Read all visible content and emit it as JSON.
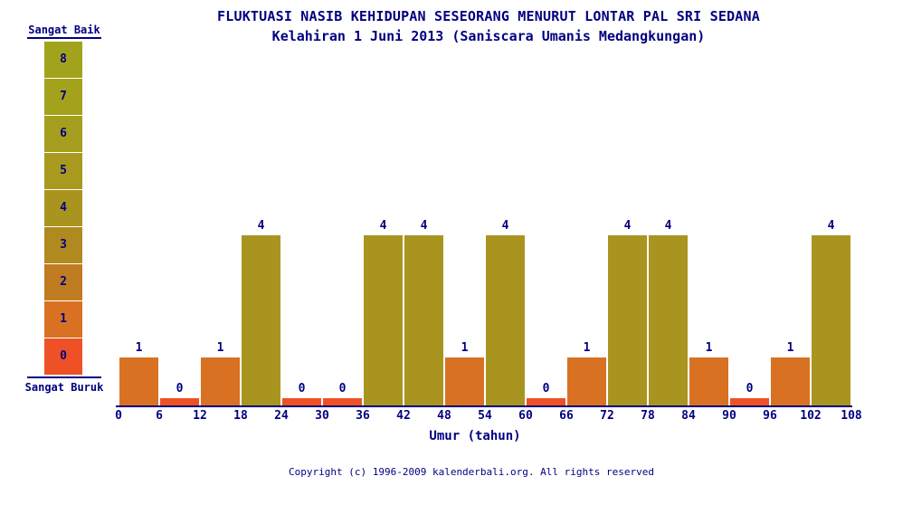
{
  "chart_data": {
    "type": "bar",
    "title": "FLUKTUASI NASIB KEHIDUPAN SESEORANG MENURUT LONTAR PAL SRI SEDANA",
    "subtitle": "Kelahiran 1 Juni 2013 (Saniscara Umanis Medangkungan)",
    "xlabel": "Umur (tahun)",
    "ylabel": "",
    "ylim": [
      0,
      8
    ],
    "x_interval_years": 6,
    "x_ticks": [
      0,
      6,
      12,
      18,
      24,
      30,
      36,
      42,
      48,
      54,
      60,
      66,
      72,
      78,
      84,
      90,
      96,
      102,
      108
    ],
    "categories": [
      "0-6",
      "6-12",
      "12-18",
      "18-24",
      "24-30",
      "30-36",
      "36-42",
      "42-48",
      "48-54",
      "54-60",
      "60-66",
      "66-72",
      "72-78",
      "78-84",
      "84-90",
      "90-96",
      "96-102",
      "102-108"
    ],
    "values": [
      1,
      0,
      1,
      4,
      0,
      0,
      4,
      4,
      1,
      4,
      0,
      1,
      4,
      4,
      1,
      0,
      1,
      4
    ],
    "grid": false,
    "legend_position": "left"
  },
  "legend": {
    "top_label": "Sangat Baik",
    "bottom_label": "Sangat Buruk",
    "scale": [
      {
        "value": 8,
        "color": "#a2a31c"
      },
      {
        "value": 7,
        "color": "#a4a11d"
      },
      {
        "value": 6,
        "color": "#a69e1e"
      },
      {
        "value": 5,
        "color": "#a89a1e"
      },
      {
        "value": 4,
        "color": "#aa9420"
      },
      {
        "value": 3,
        "color": "#b18a1f"
      },
      {
        "value": 2,
        "color": "#c07c20"
      },
      {
        "value": 1,
        "color": "#d87222"
      },
      {
        "value": 0,
        "color": "#ef5126"
      }
    ]
  },
  "footer": {
    "copyright": "Copyright (c) 1996-2009 kalenderbali.org. All rights reserved"
  },
  "colors": {
    "text": "#000080",
    "axis": "#000080",
    "background": "#ffffff"
  }
}
